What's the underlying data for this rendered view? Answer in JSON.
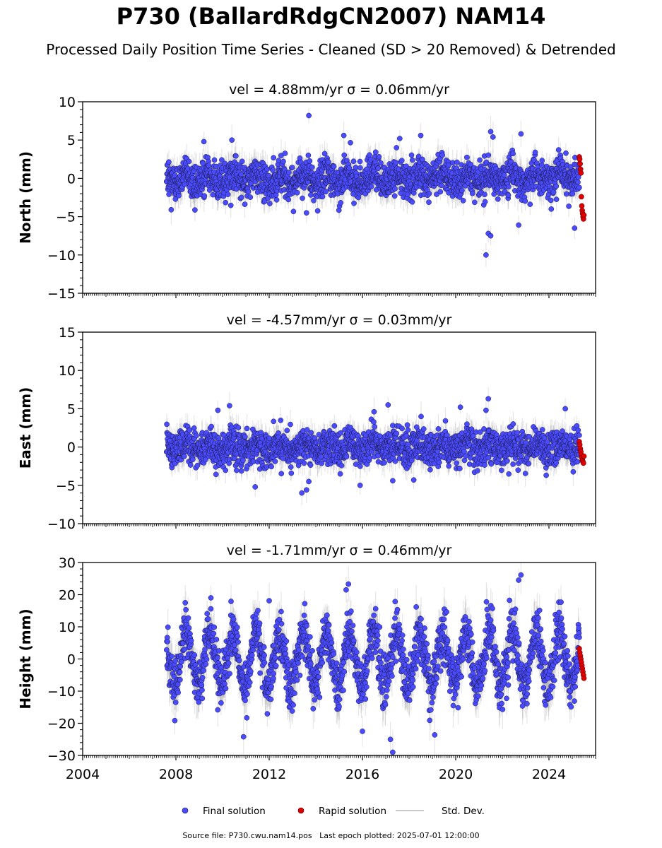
{
  "title": "P730 (BallardRdgCN2007) NAM14",
  "subtitle": "Processed Daily Position Time Series - Cleaned (SD > 20 Removed) & Detrended",
  "footer": {
    "source_label": "Source file:",
    "source_file": "P730.cwu.nam14.pos",
    "last_epoch_label": "Last epoch plotted:",
    "last_epoch": "2025-07-01 12:00:00"
  },
  "legend": {
    "placement": "bottom-center",
    "items": [
      {
        "label": "Final solution",
        "color": "#4a4aff"
      },
      {
        "label": "Rapid solution",
        "color": "#e00000"
      },
      {
        "label": "Std. Dev.",
        "color": "#c8c8c8"
      }
    ]
  },
  "colors": {
    "final": "#4a4aff",
    "rapid": "#e00000",
    "stddev": "#9a9a9a",
    "axis": "#000000"
  },
  "chart_data": [
    {
      "type": "scatter",
      "panel_title": "vel = 4.88mm/yr   σ = 0.06mm/yr",
      "ylabel": "North (mm)",
      "xlim": [
        2004,
        2026
      ],
      "ylim": [
        -15,
        10
      ],
      "yticks": [
        -15,
        -10,
        -5,
        0,
        5,
        10
      ],
      "xticks": [
        2004,
        2008,
        2012,
        2016,
        2020,
        2024
      ],
      "show_xtick_labels": false,
      "data_start": 2007.6,
      "final_end": 2025.3,
      "rapid_range": [
        2025.3,
        2025.5
      ],
      "series": [
        {
          "name": "Final solution",
          "seasonal_amp": 0.6,
          "noise_sd": 1.2,
          "stddev_mm": 1.5,
          "points": [
            {
              "x": 2013.7,
              "y": 8.2
            },
            {
              "x": 2015.2,
              "y": 5.6
            },
            {
              "x": 2021.3,
              "y": -10.0
            },
            {
              "x": 2021.4,
              "y": -7.2
            },
            {
              "x": 2021.5,
              "y": -7.5
            },
            {
              "x": 2021.5,
              "y": 6.1
            },
            {
              "x": 2021.6,
              "y": 5.4
            },
            {
              "x": 2022.8,
              "y": 5.8
            },
            {
              "x": 2022.7,
              "y": -6.1
            },
            {
              "x": 2009.2,
              "y": 4.8
            },
            {
              "x": 2010.4,
              "y": 5.0
            },
            {
              "x": 2007.8,
              "y": -4.1
            },
            {
              "x": 2013.6,
              "y": -4.5
            },
            {
              "x": 2017.6,
              "y": 5.2
            },
            {
              "x": 2018.5,
              "y": 5.6
            },
            {
              "x": 2024.1,
              "y": -4.0
            },
            {
              "x": 2025.1,
              "y": -6.5
            }
          ]
        },
        {
          "name": "Rapid solution",
          "values": [
            2.8,
            2.5,
            1.9,
            1.2,
            0.7,
            -2.4,
            -3.6,
            -4.2,
            -4.6,
            -5.0,
            -5.3,
            -4.8
          ]
        }
      ]
    },
    {
      "type": "scatter",
      "panel_title": "vel = -4.57mm/yr   σ = 0.03mm/yr",
      "ylabel": "East (mm)",
      "xlim": [
        2004,
        2026
      ],
      "ylim": [
        -10,
        15
      ],
      "yticks": [
        -10,
        -5,
        0,
        5,
        10,
        15
      ],
      "xticks": [
        2004,
        2008,
        2012,
        2016,
        2020,
        2024
      ],
      "show_xtick_labels": false,
      "data_start": 2007.6,
      "final_end": 2025.3,
      "rapid_range": [
        2025.3,
        2025.5
      ],
      "series": [
        {
          "name": "Final solution",
          "seasonal_amp": 0.4,
          "noise_sd": 1.2,
          "stddev_mm": 1.4,
          "points": [
            {
              "x": 2010.3,
              "y": 5.4
            },
            {
              "x": 2009.8,
              "y": 4.8
            },
            {
              "x": 2021.4,
              "y": 6.3
            },
            {
              "x": 2021.3,
              "y": 4.8
            },
            {
              "x": 2016.5,
              "y": 4.6
            },
            {
              "x": 2017.1,
              "y": 5.5
            },
            {
              "x": 2020.2,
              "y": 5.2
            },
            {
              "x": 2024.7,
              "y": 5.0
            },
            {
              "x": 2013.4,
              "y": -6.0
            },
            {
              "x": 2013.6,
              "y": -5.6
            },
            {
              "x": 2013.7,
              "y": -4.5
            },
            {
              "x": 2011.4,
              "y": -5.2
            },
            {
              "x": 2015.9,
              "y": -5.0
            },
            {
              "x": 2017.3,
              "y": -4.4
            },
            {
              "x": 2018.2,
              "y": -4.3
            }
          ]
        },
        {
          "name": "Rapid solution",
          "values": [
            0.7,
            0.3,
            -0.2,
            -0.6,
            -1.0,
            -1.4,
            -1.7,
            -1.9,
            -2.1,
            -1.2
          ]
        }
      ]
    },
    {
      "type": "scatter",
      "panel_title": "vel = -1.71mm/yr   σ = 0.46mm/yr",
      "ylabel": "Height (mm)",
      "xlim": [
        2004,
        2026
      ],
      "ylim": [
        -30,
        30
      ],
      "yticks": [
        -30,
        -20,
        -10,
        0,
        10,
        20,
        30
      ],
      "xticks": [
        2004,
        2008,
        2012,
        2016,
        2020,
        2024
      ],
      "xtick_labels": [
        "2004",
        "2008",
        "2012",
        "2016",
        "2020",
        "2024"
      ],
      "show_xtick_labels": true,
      "data_start": 2007.6,
      "final_end": 2025.3,
      "rapid_range": [
        2025.3,
        2025.5
      ],
      "series": [
        {
          "name": "Final solution",
          "seasonal_amp": 8.5,
          "noise_sd": 3.8,
          "stddev_mm": 5.0,
          "points": [
            {
              "x": 2015.4,
              "y": 23.3
            },
            {
              "x": 2022.8,
              "y": 26.1
            },
            {
              "x": 2022.7,
              "y": 24.5
            },
            {
              "x": 2015.3,
              "y": 21.5
            },
            {
              "x": 2010.9,
              "y": -24.2
            },
            {
              "x": 2017.3,
              "y": -29.0
            },
            {
              "x": 2017.2,
              "y": -25.0
            },
            {
              "x": 2016.0,
              "y": -22.5
            },
            {
              "x": 2019.1,
              "y": -23.6
            },
            {
              "x": 2008.4,
              "y": 17.5
            },
            {
              "x": 2009.5,
              "y": 19.0
            },
            {
              "x": 2012.0,
              "y": 18.1
            }
          ]
        },
        {
          "name": "Rapid solution",
          "values": [
            3.2,
            2.0,
            1.0,
            0.0,
            -1.0,
            -2.0,
            -3.0,
            -4.0,
            -5.0,
            -6.0
          ]
        }
      ]
    }
  ]
}
